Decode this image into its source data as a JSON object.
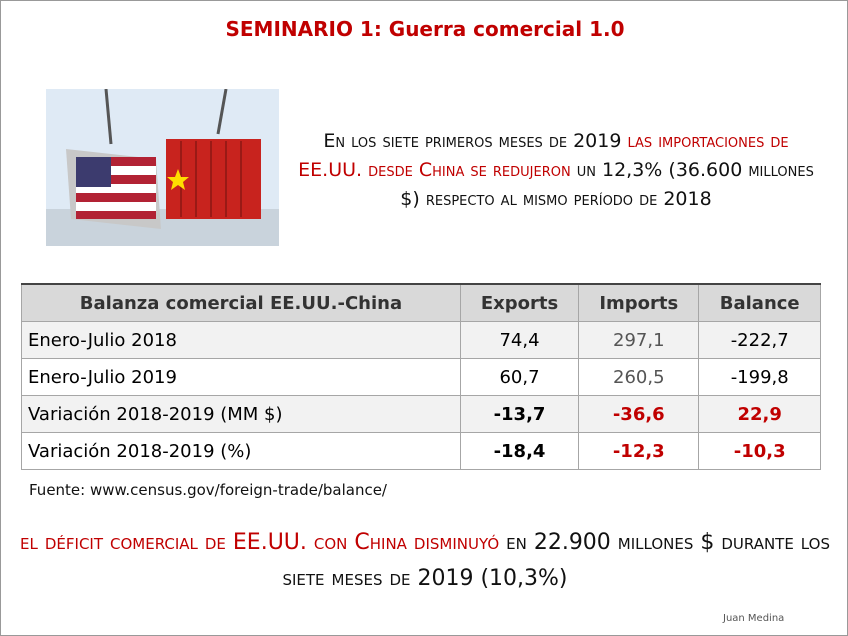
{
  "header": {
    "title": "SEMINARIO 1: Guerra comercial 1.0"
  },
  "intro": {
    "part1": "En los siete primeros meses de 2019 ",
    "part2": "las importaciones de EE.UU. desde China se redujeron",
    "part3": " un 12,3% (36.600 millones $) respecto al mismo período de 2018"
  },
  "table": {
    "header": [
      "Balanza comercial EE.UU.-China",
      "Exports",
      "Imports",
      "Balance"
    ],
    "rows": [
      [
        "Enero-Julio 2018",
        "74,4",
        "297,1",
        "-222,7"
      ],
      [
        "Enero-Julio 2019",
        "60,7",
        "260,5",
        "-199,8"
      ],
      [
        "Variación 2018-2019 (MM $)",
        "-13,7",
        "-36,6",
        "22,9"
      ],
      [
        "Variación 2018-2019 (%)",
        "-18,4",
        "-12,3",
        "-10,3"
      ]
    ]
  },
  "source": "Fuente: www.census.gov/foreign-trade/balance/",
  "conclusion": {
    "part1": "el déficit comercial de EE.UU. con China disminuyó",
    "part2": " en 22.900 millones $ durante los siete meses de 2019 (10,3%)"
  },
  "author": "Juan Medina"
}
